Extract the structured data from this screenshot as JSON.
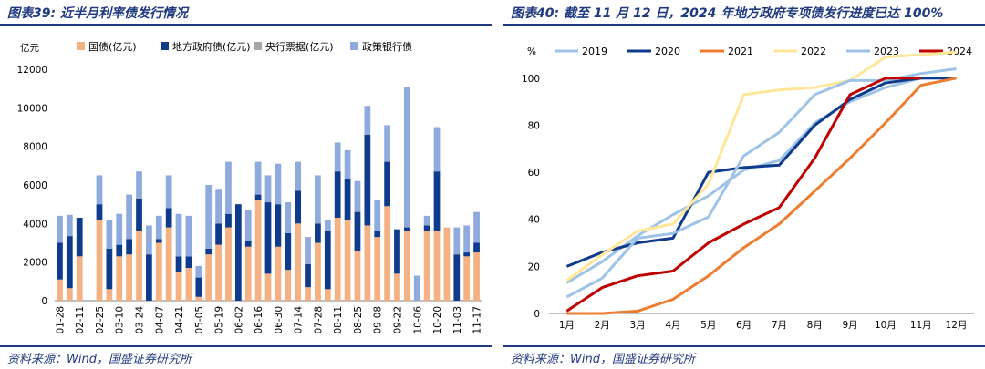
{
  "left": {
    "title": "图表39:  近半月利率债发行情况",
    "source": "资料来源：Wind，国盛证券研究所",
    "chart_data": {
      "type": "bar",
      "stacked": true,
      "ylabel": "亿元",
      "ylim": [
        0,
        12000
      ],
      "yticks": [
        0,
        2000,
        4000,
        6000,
        8000,
        10000,
        12000
      ],
      "xtick_labels": [
        "01-28",
        "02-11",
        "02-25",
        "03-10",
        "03-24",
        "04-07",
        "04-21",
        "05-05",
        "05-19",
        "06-02",
        "06-16",
        "06-30",
        "07-14",
        "07-28",
        "08-11",
        "08-25",
        "09-08",
        "09-22",
        "10-06",
        "10-20",
        "11-03",
        "11-17"
      ],
      "legend_position": "top",
      "colors": {
        "gov": "#f4b183",
        "local": "#0f3b8c",
        "cb": "#a6a6a6",
        "policy": "#8faadc"
      },
      "series": [
        {
          "name": "国债(亿元)",
          "key": "gov",
          "values": [
            1100,
            650,
            2300,
            0,
            4200,
            600,
            2300,
            2400,
            3600,
            0,
            3000,
            3800,
            1500,
            1700,
            200,
            2400,
            2900,
            3800,
            0,
            2800,
            5200,
            1400,
            2800,
            1600,
            4000,
            700,
            3000,
            600,
            4300,
            4200,
            2600,
            3900,
            3300,
            4900,
            1400,
            3600,
            0,
            3600,
            3600,
            3800,
            0,
            2300,
            2500
          ]
        },
        {
          "name": "地方政府债(亿元)",
          "key": "local",
          "values": [
            1900,
            2700,
            2000,
            0,
            800,
            2100,
            600,
            800,
            1700,
            2400,
            200,
            1000,
            800,
            600,
            1000,
            300,
            1100,
            700,
            5000,
            300,
            300,
            3700,
            2200,
            1900,
            1700,
            1200,
            1000,
            3000,
            2400,
            2100,
            2000,
            4700,
            300,
            2300,
            2300,
            200,
            0,
            300,
            3100,
            0,
            2400,
            200,
            500
          ]
        },
        {
          "name": "央行票据(亿元)",
          "key": "cb",
          "values": [
            0,
            0,
            0,
            0,
            0,
            0,
            0,
            0,
            0,
            0,
            0,
            0,
            0,
            0,
            0,
            0,
            0,
            0,
            0,
            0,
            0,
            0,
            0,
            0,
            0,
            0,
            0,
            0,
            0,
            0,
            0,
            0,
            0,
            0,
            0,
            0,
            0,
            0,
            0,
            0,
            0,
            0,
            0
          ]
        },
        {
          "name": "政策银行债",
          "key": "policy",
          "values": [
            1400,
            1100,
            0,
            0,
            1500,
            1500,
            1600,
            2300,
            1400,
            1500,
            1200,
            1700,
            2200,
            2100,
            600,
            3300,
            1800,
            2700,
            0,
            1600,
            1700,
            1400,
            2100,
            1600,
            1500,
            1400,
            2500,
            600,
            1500,
            1500,
            1600,
            1500,
            1600,
            1900,
            0,
            7300,
            1300,
            500,
            2300,
            0,
            1400,
            1400,
            1600
          ]
        }
      ]
    }
  },
  "right": {
    "title": "图表40:  截至 11 月 12 日，2024 年地方政府专项债发行进度已达 100%",
    "source": "资料来源：Wind，国盛证券研究所",
    "chart_data": {
      "type": "line",
      "ylabel": "%",
      "ylim": [
        0,
        110
      ],
      "yticks": [
        0,
        20,
        40,
        60,
        80,
        100
      ],
      "categories": [
        "1月",
        "2月",
        "3月",
        "4月",
        "5月",
        "6月",
        "7月",
        "8月",
        "9月",
        "10月",
        "11月",
        "12月"
      ],
      "legend_position": "top",
      "series": [
        {
          "name": "2019",
          "color": "#9dc3e6",
          "values": [
            13,
            22,
            33,
            42,
            50,
            61,
            65,
            81,
            90,
            96,
            100,
            100
          ]
        },
        {
          "name": "2020",
          "color": "#0f3b8c",
          "values": [
            20,
            26,
            30,
            32,
            60,
            62,
            63,
            80,
            91,
            98,
            100,
            100
          ]
        },
        {
          "name": "2021",
          "color": "#ed7d31",
          "values": [
            0,
            0,
            1,
            6,
            16,
            28,
            38,
            52,
            66,
            81,
            97,
            100
          ]
        },
        {
          "name": "2022",
          "color": "#ffe699",
          "values": [
            14,
            25,
            35,
            38,
            55,
            93,
            95,
            96,
            99,
            109,
            110,
            111
          ]
        },
        {
          "name": "2023",
          "color": "#9dc3e6",
          "values": [
            7,
            15,
            32,
            34,
            41,
            67,
            77,
            93,
            99,
            99,
            102,
            104
          ]
        },
        {
          "name": "2024",
          "color": "#c00000",
          "values": [
            1,
            11,
            16,
            18,
            30,
            38,
            45,
            66,
            93,
            100,
            100,
            null
          ]
        }
      ]
    }
  }
}
